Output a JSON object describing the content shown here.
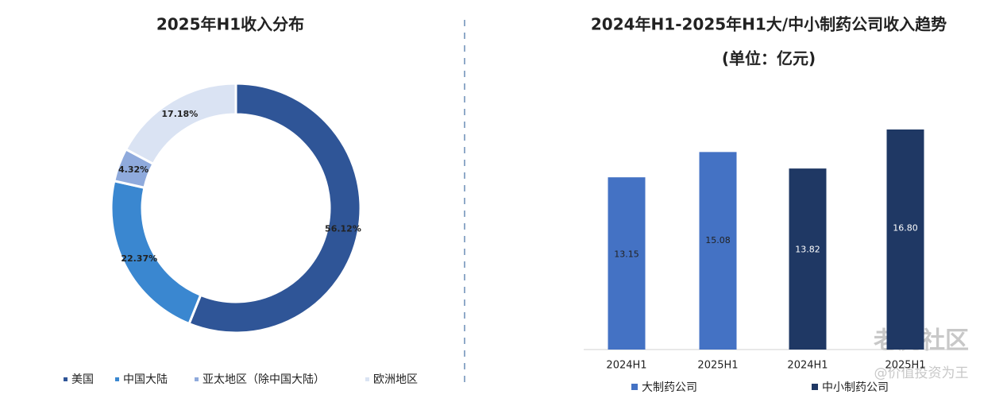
{
  "chart_data": [
    {
      "type": "donut",
      "title": "2025年H1收入分布",
      "categories": [
        "美国",
        "中国大陆",
        "亚太地区（除中国大陆）",
        "欧洲地区"
      ],
      "values": [
        56.12,
        22.37,
        4.32,
        17.18
      ],
      "value_labels": [
        "56.12%",
        "22.37%",
        "4.32%",
        "17.18%"
      ],
      "colors": [
        "#2f5597",
        "#3a87d0",
        "#8faadc",
        "#dae3f3"
      ]
    },
    {
      "type": "bar",
      "title": "2024年H1-2025年H1大/中小制药公司收入趋势",
      "subtitle": "(单位：亿元)",
      "categories": [
        "2024H1",
        "2025H1",
        "2024H1",
        "2025H1"
      ],
      "series": [
        {
          "name": "大制药公司",
          "color": "#4472c4",
          "values": [
            13.15,
            15.08,
            null,
            null
          ]
        },
        {
          "name": "中小制药公司",
          "color": "#1f3864",
          "values": [
            null,
            null,
            13.82,
            16.8
          ],
          "value_labels": [
            null,
            null,
            "13.82",
            "16.80"
          ]
        }
      ]
    }
  ],
  "watermark": {
    "brand": "老虎社区",
    "author": "@价值投资为王"
  }
}
